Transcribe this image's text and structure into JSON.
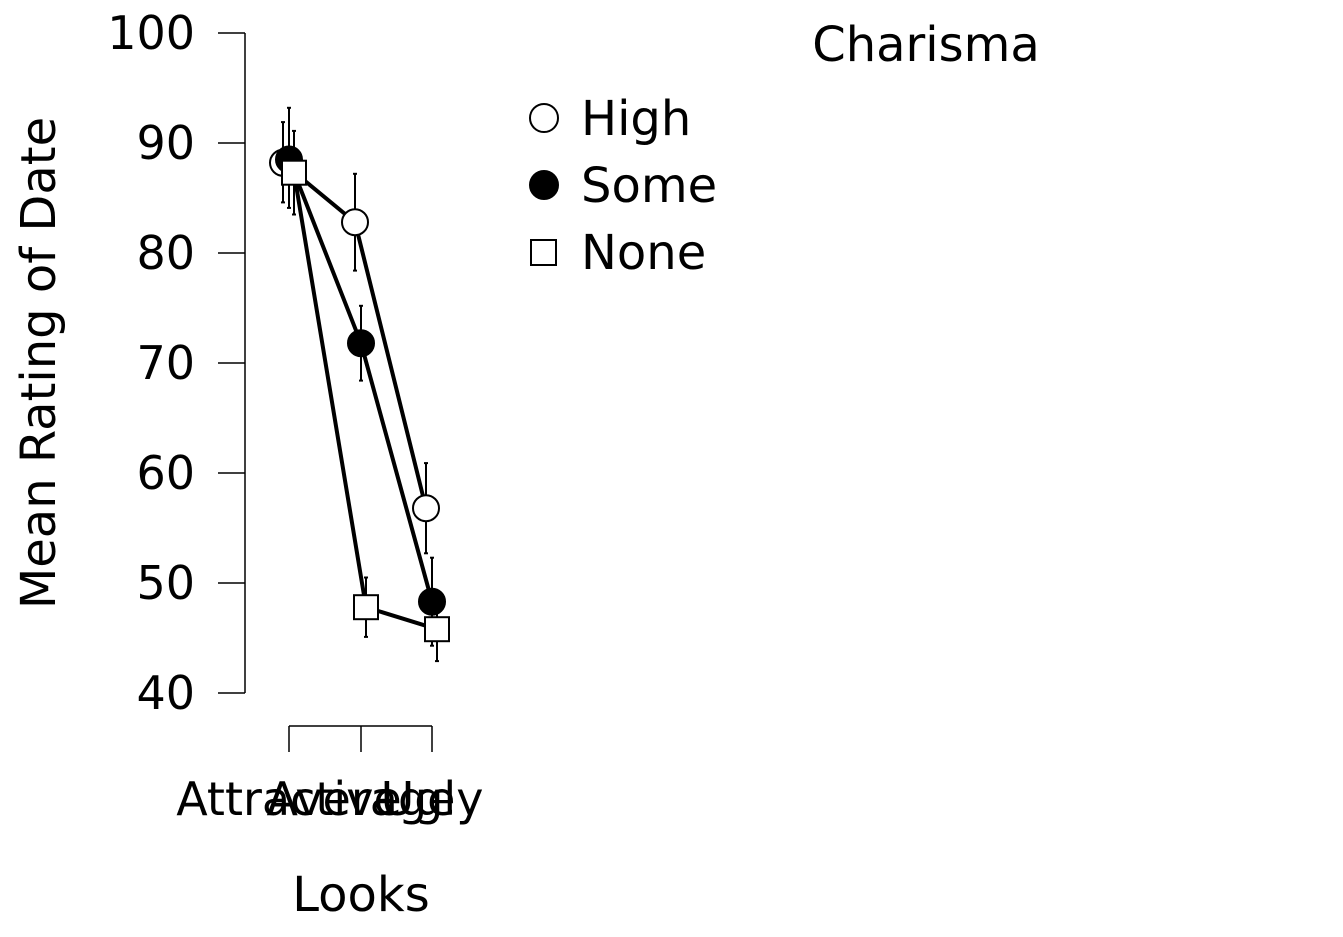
{
  "chart_data": {
    "type": "line",
    "title": "",
    "xlabel": "Looks",
    "ylabel": "Mean Rating of Date",
    "ylim": [
      40,
      100
    ],
    "yticks": [
      40,
      50,
      60,
      70,
      80,
      90,
      100
    ],
    "categories": [
      "Attractive",
      "Average",
      "Ugly"
    ],
    "legend": {
      "title": "Charisma",
      "position": "top-right"
    },
    "series": [
      {
        "name": "High",
        "marker": "circle-open",
        "values": [
          88.2,
          82.8,
          56.8
        ],
        "error_low": [
          84.6,
          78.4,
          52.7
        ],
        "error_high": [
          91.9,
          87.2,
          60.9
        ]
      },
      {
        "name": "Some",
        "marker": "circle-filled",
        "values": [
          88.5,
          71.8,
          48.3
        ],
        "error_low": [
          84.1,
          68.4,
          44.3
        ],
        "error_high": [
          93.2,
          75.2,
          52.3
        ]
      },
      {
        "name": "None",
        "marker": "square-open",
        "values": [
          87.3,
          47.8,
          45.8
        ],
        "error_low": [
          83.5,
          45.1,
          42.9
        ],
        "error_high": [
          91.1,
          50.5,
          48.7
        ]
      }
    ],
    "colors": {
      "line": "#000000",
      "fill_open": "#ffffff",
      "fill_filled": "#000000"
    }
  }
}
